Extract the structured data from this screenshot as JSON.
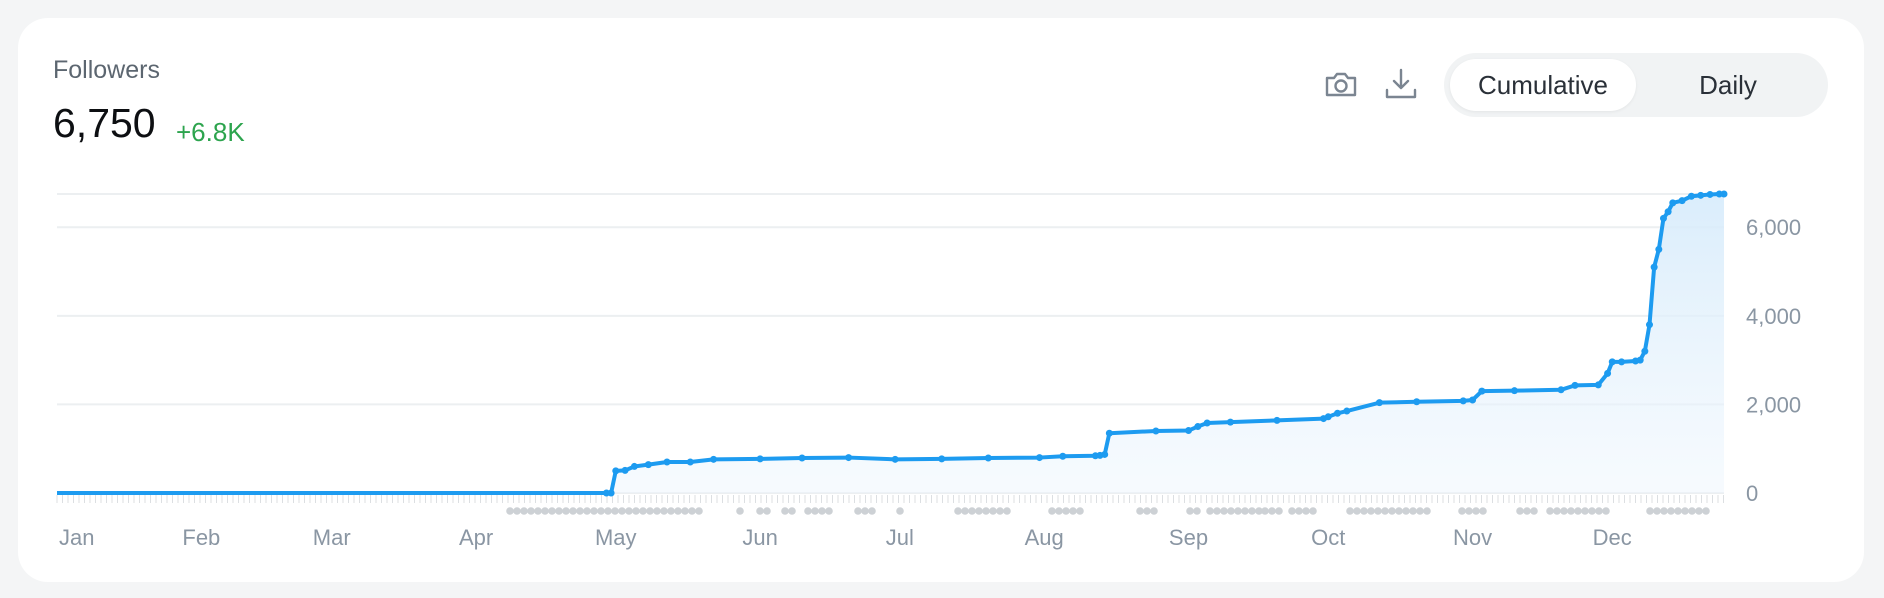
{
  "header": {
    "title": "Followers",
    "value": "6,750",
    "delta": "+6.8K"
  },
  "toolbar": {
    "screenshot_icon": "camera-icon",
    "download_icon": "download-icon"
  },
  "toggle": {
    "options": [
      "Cumulative",
      "Daily"
    ],
    "selected": "Cumulative"
  },
  "colors": {
    "line": "#1d9bf0",
    "area_top": "#d6ebfb",
    "delta": "#2da44e",
    "grid": "#eceff1",
    "marker": "#cdd1d5"
  },
  "chart_data": {
    "type": "area",
    "title": "",
    "xlabel": "",
    "ylabel": "",
    "x_tick_labels": [
      "Jan",
      "Feb",
      "Mar",
      "Apr",
      "May",
      "Jun",
      "Jul",
      "Aug",
      "Sep",
      "Oct",
      "Nov",
      "Dec"
    ],
    "y_tick_labels": [
      "6,000",
      "4,000",
      "2,000",
      "0"
    ],
    "y_ticks": [
      6000,
      4000,
      2000,
      0
    ],
    "ylim": [
      0,
      6750
    ],
    "xlim": [
      "Jan 1",
      "Dec 25"
    ],
    "grid": true,
    "series": [
      {
        "x": [
          "Jan 1",
          "Apr 29",
          "Apr 30",
          "May 1",
          "May 3",
          "May 5",
          "May 8",
          "May 12",
          "May 17",
          "May 22",
          "Jun 1",
          "Jun 10",
          "Jun 20",
          "Jun 30",
          "Jul 10",
          "Jul 20",
          "Jul 31",
          "Aug 5",
          "Aug 12",
          "Aug 13",
          "Aug 14",
          "Aug 15",
          "Aug 25",
          "Sep 1",
          "Sep 3",
          "Sep 5",
          "Sep 10",
          "Sep 20",
          "Sep 30",
          "Oct 1",
          "Oct 3",
          "Oct 5",
          "Oct 12",
          "Oct 20",
          "Oct 30",
          "Nov 1",
          "Nov 3",
          "Nov 10",
          "Nov 20",
          "Nov 23",
          "Nov 28",
          "Nov 30",
          "Dec 1",
          "Dec 3",
          "Dec 6",
          "Dec 7",
          "Dec 8",
          "Dec 9",
          "Dec 10",
          "Dec 11",
          "Dec 12",
          "Dec 13",
          "Dec 14",
          "Dec 16",
          "Dec 18",
          "Dec 20",
          "Dec 22",
          "Dec 24",
          "Dec 25"
        ],
        "y": [
          0,
          0,
          0,
          500,
          510,
          600,
          640,
          700,
          700,
          760,
          770,
          790,
          800,
          760,
          770,
          790,
          800,
          830,
          840,
          850,
          870,
          1350,
          1400,
          1410,
          1500,
          1580,
          1600,
          1640,
          1680,
          1720,
          1800,
          1850,
          2040,
          2060,
          2080,
          2100,
          2300,
          2310,
          2330,
          2430,
          2440,
          2700,
          2960,
          2960,
          2980,
          3000,
          3200,
          3800,
          5100,
          5500,
          6200,
          6350,
          6550,
          6600,
          6700,
          6720,
          6740,
          6750,
          6750
        ]
      }
    ]
  }
}
